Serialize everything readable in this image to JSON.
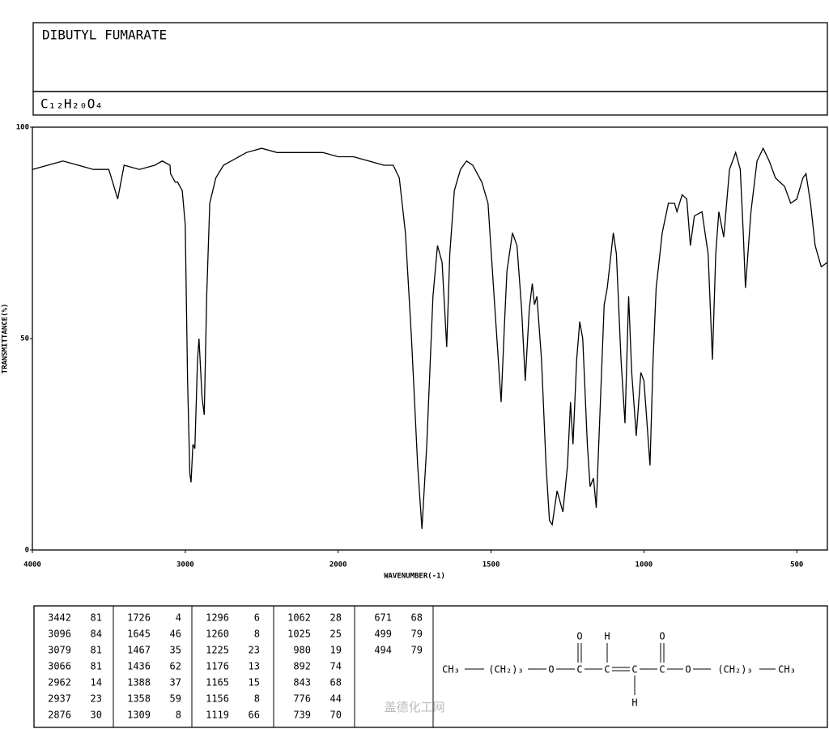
{
  "chart_data": {
    "type": "line",
    "title": "DIBUTYL FUMARATE",
    "subtitle": "C₁₂H₂₀O₄",
    "x_label": "WAVENUMBER(-1)",
    "y_label": "TRANSMITTANCE(%)",
    "xlim": [
      4000,
      400
    ],
    "xticks": [
      4000,
      3000,
      2000,
      1500,
      1000,
      500
    ],
    "xscale": "piecewise",
    "ylim": [
      0,
      100
    ],
    "yticks": [
      0,
      50,
      100
    ],
    "grid": false,
    "color": "#000000",
    "x": [
      4000,
      3900,
      3800,
      3700,
      3600,
      3500,
      3442,
      3400,
      3300,
      3200,
      3150,
      3100,
      3096,
      3066,
      3050,
      3020,
      3000,
      2985,
      2970,
      2962,
      2950,
      2937,
      2920,
      2910,
      2890,
      2876,
      2860,
      2840,
      2800,
      2750,
      2700,
      2600,
      2500,
      2400,
      2300,
      2200,
      2100,
      2000,
      1950,
      1900,
      1850,
      1820,
      1800,
      1780,
      1760,
      1740,
      1726,
      1710,
      1690,
      1675,
      1660,
      1645,
      1635,
      1620,
      1600,
      1580,
      1560,
      1530,
      1510,
      1490,
      1467,
      1455,
      1448,
      1430,
      1415,
      1400,
      1388,
      1375,
      1365,
      1358,
      1350,
      1335,
      1320,
      1309,
      1300,
      1284,
      1265,
      1250,
      1240,
      1232,
      1220,
      1210,
      1200,
      1185,
      1176,
      1165,
      1156,
      1145,
      1130,
      1120,
      1100,
      1090,
      1075,
      1062,
      1050,
      1040,
      1025,
      1010,
      1000,
      990,
      980,
      970,
      960,
      940,
      920,
      900,
      892,
      875,
      860,
      848,
      835,
      810,
      790,
      776,
      765,
      755,
      739,
      720,
      700,
      685,
      675,
      668,
      650,
      630,
      610,
      590,
      570,
      540,
      520,
      500,
      480,
      470,
      455,
      440,
      420,
      400
    ],
    "values": [
      90,
      91,
      92,
      91,
      90,
      90,
      83,
      91,
      90,
      91,
      92,
      91,
      89,
      87,
      87,
      85,
      77,
      40,
      18,
      16,
      25,
      24,
      45,
      50,
      36,
      32,
      60,
      82,
      88,
      91,
      92,
      94,
      95,
      94,
      94,
      94,
      94,
      93,
      93,
      92,
      91,
      91,
      88,
      75,
      50,
      20,
      5,
      25,
      60,
      72,
      68,
      48,
      70,
      85,
      90,
      92,
      91,
      87,
      82,
      60,
      35,
      55,
      66,
      75,
      72,
      57,
      40,
      57,
      63,
      58,
      60,
      45,
      20,
      7,
      6,
      14,
      9,
      20,
      35,
      25,
      45,
      54,
      50,
      25,
      15,
      17,
      10,
      30,
      58,
      62,
      75,
      70,
      45,
      30,
      60,
      42,
      27,
      42,
      40,
      30,
      20,
      45,
      62,
      75,
      82,
      82,
      80,
      84,
      83,
      72,
      79,
      80,
      70,
      45,
      70,
      80,
      74,
      90,
      94,
      90,
      75,
      62,
      80,
      92,
      95,
      92,
      88,
      86,
      82,
      83,
      88,
      89,
      82,
      72,
      67,
      68
    ]
  },
  "peaks": [
    [
      3442,
      81
    ],
    [
      3096,
      84
    ],
    [
      3079,
      81
    ],
    [
      3066,
      81
    ],
    [
      2962,
      14
    ],
    [
      2937,
      23
    ],
    [
      2876,
      30
    ],
    [
      1726,
      4
    ],
    [
      1645,
      46
    ],
    [
      1467,
      35
    ],
    [
      1436,
      62
    ],
    [
      1388,
      37
    ],
    [
      1358,
      59
    ],
    [
      1309,
      8
    ],
    [
      1296,
      6
    ],
    [
      1260,
      8
    ],
    [
      1225,
      23
    ],
    [
      1176,
      13
    ],
    [
      1165,
      15
    ],
    [
      1156,
      8
    ],
    [
      1119,
      66
    ],
    [
      1062,
      28
    ],
    [
      1025,
      25
    ],
    [
      980,
      19
    ],
    [
      892,
      74
    ],
    [
      843,
      68
    ],
    [
      776,
      44
    ],
    [
      739,
      70
    ],
    [
      671,
      68
    ],
    [
      499,
      79
    ],
    [
      494,
      79
    ]
  ],
  "structure": {
    "chain": [
      "CH₃",
      "(CH₂)₃",
      "O",
      "C",
      "C",
      "C",
      "C",
      "O",
      "(CH₂)₃",
      "CH₃"
    ],
    "top": [
      "O",
      "H",
      "O"
    ],
    "bottom": [
      "H"
    ]
  },
  "watermark": "盖德化工网"
}
